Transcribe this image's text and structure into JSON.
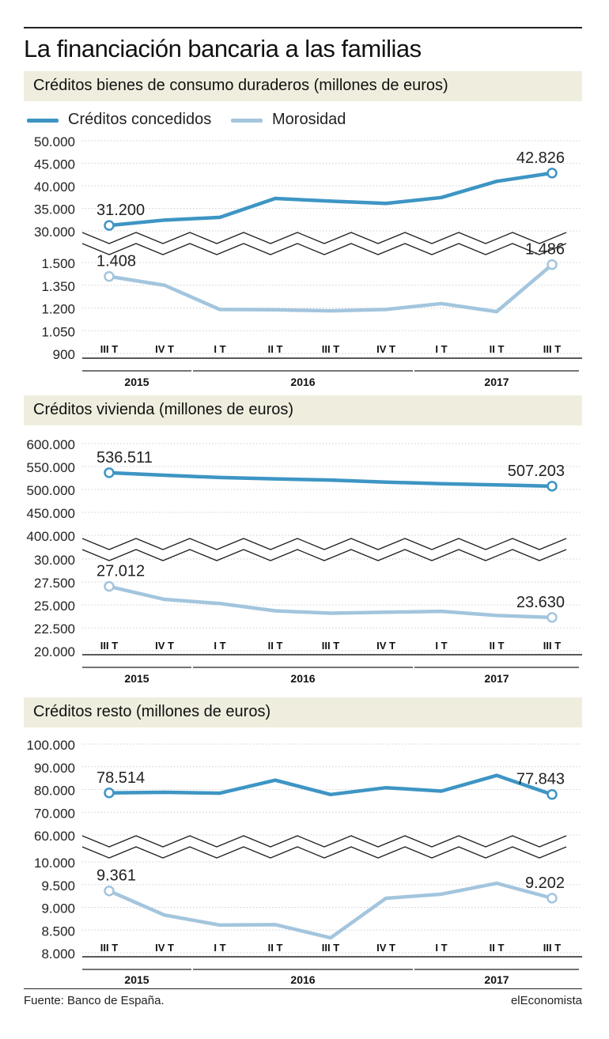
{
  "header": {
    "title": "La financiación bancaria a las familias"
  },
  "legend": {
    "items": [
      {
        "label": "Créditos concedidos",
        "color": "#3d95c4"
      },
      {
        "label": "Morosidad",
        "color": "#a3c5de"
      }
    ]
  },
  "x_axis": {
    "ticks": [
      "III T",
      "IV T",
      "I T",
      "II T",
      "III T",
      "IV T",
      "I T",
      "II T",
      "III T"
    ],
    "years": [
      {
        "label": "2015",
        "from": 0,
        "to": 1
      },
      {
        "label": "2016",
        "from": 2,
        "to": 5
      },
      {
        "label": "2017",
        "from": 6,
        "to": 8
      }
    ]
  },
  "chart_data": [
    {
      "type": "line",
      "title": "Créditos bienes de consumo duraderos (millones de euros)",
      "categories": [
        "III T 2015",
        "IV T 2015",
        "I T 2016",
        "II T 2016",
        "III T 2016",
        "IV T 2016",
        "I T 2017",
        "II T 2017",
        "III T 2017"
      ],
      "series": [
        {
          "name": "Créditos concedidos",
          "values": [
            31200,
            32400,
            33000,
            37200,
            36600,
            36100,
            37400,
            41000,
            42826
          ],
          "ylim": [
            30000,
            50000
          ],
          "ticks": [
            "50.000",
            "45.000",
            "40.000",
            "35.000",
            "30.000"
          ],
          "labels": {
            "first": "31.200",
            "last": "42.826"
          }
        },
        {
          "name": "Morosidad",
          "values": [
            1408,
            1350,
            1190,
            1188,
            1181,
            1190,
            1229,
            1176,
            1486
          ],
          "ylim": [
            900,
            1500
          ],
          "ticks": [
            "1.500",
            "1.350",
            "1.200",
            "1.050",
            "900"
          ],
          "labels": {
            "first": "1.408",
            "last": "1.486"
          }
        }
      ]
    },
    {
      "type": "line",
      "title": "Créditos vivienda (millones de euros)",
      "categories": [
        "III T 2015",
        "IV T 2015",
        "I T 2016",
        "II T 2016",
        "III T 2016",
        "IV T 2016",
        "I T 2017",
        "II T 2017",
        "III T 2017"
      ],
      "series": [
        {
          "name": "Créditos concedidos",
          "values": [
            536511,
            531000,
            526000,
            523000,
            520500,
            516000,
            512500,
            510000,
            507203
          ],
          "ylim": [
            400000,
            600000
          ],
          "ticks": [
            "600.000",
            "550.000",
            "500.000",
            "450.000",
            "400.000"
          ],
          "labels": {
            "first": "536.511",
            "last": "507.203"
          }
        },
        {
          "name": "Morosidad",
          "values": [
            27012,
            25600,
            25150,
            24350,
            24100,
            24200,
            24300,
            23850,
            23630
          ],
          "ylim": [
            20000,
            30000
          ],
          "ticks": [
            "30.000",
            "27.500",
            "25.000",
            "22.500",
            "20.000"
          ],
          "labels": {
            "first": "27.012",
            "last": "23.630"
          }
        }
      ]
    },
    {
      "type": "line",
      "title": "Créditos resto (millones de euros)",
      "categories": [
        "III T 2015",
        "IV T 2015",
        "I T 2016",
        "II T 2016",
        "III T 2016",
        "IV T 2016",
        "I T 2017",
        "II T 2017",
        "III T 2017"
      ],
      "series": [
        {
          "name": "Créditos concedidos",
          "values": [
            78514,
            78800,
            78400,
            84100,
            77800,
            80800,
            79300,
            86200,
            77843
          ],
          "ylim": [
            60000,
            100000
          ],
          "ticks": [
            "100.000",
            "90.000",
            "80.000",
            "70.000",
            "60.000"
          ],
          "labels": {
            "first": "78.514",
            "last": "77.843"
          }
        },
        {
          "name": "Morosidad",
          "values": [
            9361,
            8830,
            8610,
            8620,
            8330,
            9200,
            9290,
            9530,
            9202
          ],
          "ylim": [
            8000,
            10000
          ],
          "ticks": [
            "10.000",
            "9.500",
            "9.000",
            "8.500",
            "8.000"
          ],
          "labels": {
            "first": "9.361",
            "last": "9.202"
          }
        }
      ]
    }
  ],
  "footer": {
    "source": "Fuente: Banco de España.",
    "brand": "elEconomista"
  }
}
